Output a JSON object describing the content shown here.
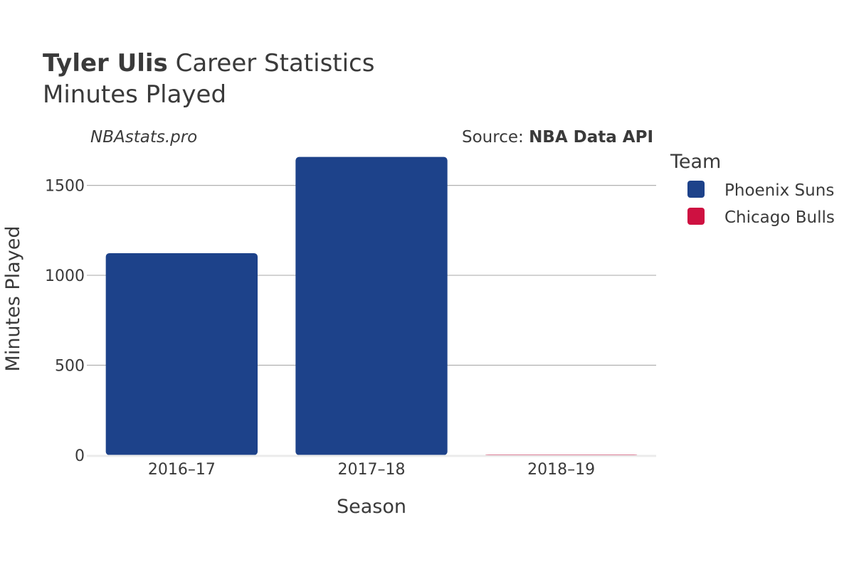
{
  "header": {
    "player_name": "Tyler Ulis",
    "title_rest": "Career Statistics",
    "subtitle": "Minutes Played"
  },
  "credits": {
    "site": "NBAstats.pro",
    "source_prefix": "Source: ",
    "source_name": "NBA Data API"
  },
  "legend": {
    "title": "Team",
    "items": [
      {
        "label": "Phoenix Suns",
        "color": "#1d428a"
      },
      {
        "label": "Chicago Bulls",
        "color": "#ce1141"
      }
    ]
  },
  "chart_data": {
    "type": "bar",
    "title": "Tyler Ulis Career Statistics",
    "subtitle": "Minutes Played",
    "xlabel": "Season",
    "ylabel": "Minutes Played",
    "categories": [
      "2016–17",
      "2017–18",
      "2018–19"
    ],
    "series": [
      {
        "name": "Phoenix Suns",
        "color": "#1d428a",
        "values": [
          1123,
          1658,
          0
        ]
      },
      {
        "name": "Chicago Bulls",
        "color": "#ce1141",
        "values": [
          0,
          0,
          4
        ]
      }
    ],
    "ylim": [
      0,
      1700
    ],
    "yticks": [
      0,
      500,
      1000,
      1500
    ],
    "grid": true,
    "legend_position": "right"
  }
}
